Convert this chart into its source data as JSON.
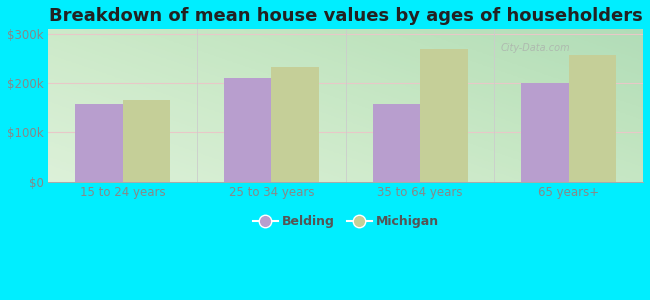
{
  "title": "Breakdown of mean house values by ages of householders",
  "categories": [
    "15 to 24 years",
    "25 to 34 years",
    "35 to 64 years",
    "65 years+"
  ],
  "belding_values": [
    158000,
    210000,
    157000,
    200000
  ],
  "michigan_values": [
    167000,
    233000,
    270000,
    258000
  ],
  "belding_color": "#b89ece",
  "michigan_color": "#c5cf98",
  "background_color": "#00eeff",
  "ylim": [
    0,
    310000
  ],
  "yticks": [
    0,
    100000,
    200000,
    300000
  ],
  "ytick_labels": [
    "$0",
    "$100k",
    "$200k",
    "$300k"
  ],
  "legend_belding": "Belding",
  "legend_michigan": "Michigan",
  "title_fontsize": 13,
  "tick_fontsize": 8.5,
  "legend_fontsize": 9,
  "bar_width": 0.32,
  "watermark": "City-Data.com",
  "tick_color": "#888888",
  "grid_color": "#dddddd",
  "plot_bg_left": "#f0f8ee",
  "plot_bg_right": "#d8eedc"
}
